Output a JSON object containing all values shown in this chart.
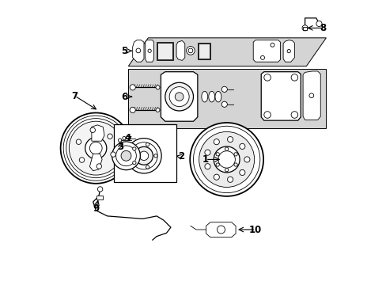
{
  "bg_color": "#ffffff",
  "line_color": "#000000",
  "shade_color": "#d4d4d4",
  "figsize": [
    4.89,
    3.6
  ],
  "dpi": 100
}
